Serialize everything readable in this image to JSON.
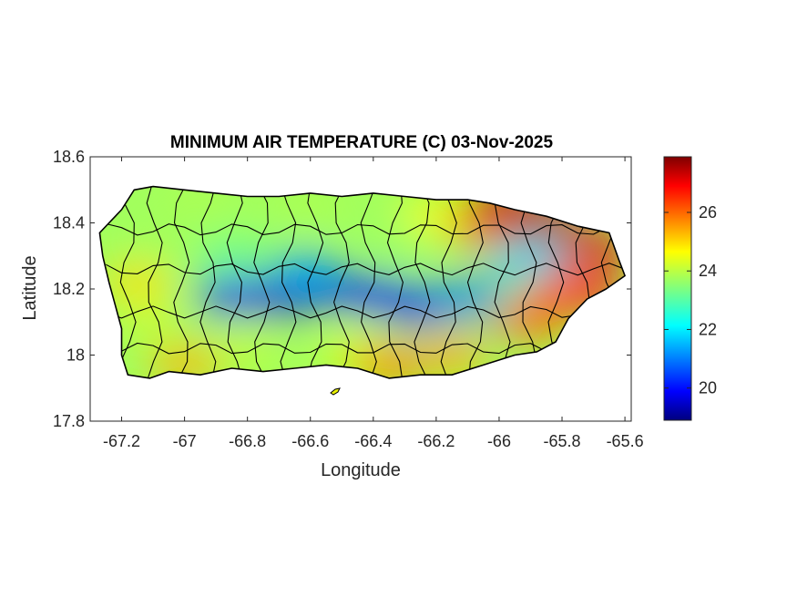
{
  "figure": {
    "title": "MINIMUM AIR TEMPERATURE (C) 03-Nov-2025",
    "xlabel": "Longitude",
    "ylabel": "Latitude"
  },
  "axes": {
    "xlim": [
      -67.3,
      -65.58
    ],
    "ylim": [
      17.8,
      18.6
    ],
    "xticks": [
      -67.2,
      -67,
      -66.8,
      -66.6,
      -66.4,
      -66.2,
      -66,
      -65.8,
      -65.6
    ],
    "xtick_labels": [
      "-67.2",
      "-67",
      "-66.8",
      "-66.6",
      "-66.4",
      "-66.2",
      "-66",
      "-65.8",
      "-65.6"
    ],
    "yticks": [
      17.8,
      18,
      18.2,
      18.4,
      18.6
    ],
    "ytick_labels": [
      "17.8",
      "18",
      "18.2",
      "18.4",
      "18.6"
    ]
  },
  "colorbar": {
    "colormap": "jet",
    "range": [
      18.9,
      27.9
    ],
    "ticks": [
      20,
      22,
      24,
      26
    ],
    "tick_labels": [
      "20",
      "22",
      "24",
      "26"
    ]
  },
  "colors": {
    "border": "#000000",
    "axis": "#262626",
    "background": "#ffffff"
  },
  "map_data": {
    "type": "heatmap",
    "variable": "minimum air temperature",
    "units": "C",
    "island_outline_lonlat": [
      [
        -67.27,
        18.37
      ],
      [
        -67.24,
        18.4
      ],
      [
        -67.2,
        18.44
      ],
      [
        -67.16,
        18.5
      ],
      [
        -67.1,
        18.51
      ],
      [
        -67.0,
        18.5
      ],
      [
        -66.9,
        18.49
      ],
      [
        -66.8,
        18.48
      ],
      [
        -66.7,
        18.48
      ],
      [
        -66.6,
        18.49
      ],
      [
        -66.5,
        18.48
      ],
      [
        -66.4,
        18.49
      ],
      [
        -66.3,
        18.48
      ],
      [
        -66.2,
        18.47
      ],
      [
        -66.1,
        18.47
      ],
      [
        -66.03,
        18.46
      ],
      [
        -65.95,
        18.44
      ],
      [
        -65.85,
        18.42
      ],
      [
        -65.75,
        18.39
      ],
      [
        -65.65,
        18.37
      ],
      [
        -65.62,
        18.29
      ],
      [
        -65.6,
        18.24
      ],
      [
        -65.66,
        18.2
      ],
      [
        -65.72,
        18.17
      ],
      [
        -65.78,
        18.11
      ],
      [
        -65.82,
        18.04
      ],
      [
        -65.88,
        18.01
      ],
      [
        -65.95,
        18.0
      ],
      [
        -66.05,
        17.97
      ],
      [
        -66.15,
        17.94
      ],
      [
        -66.25,
        17.94
      ],
      [
        -66.35,
        17.93
      ],
      [
        -66.45,
        17.96
      ],
      [
        -66.55,
        17.97
      ],
      [
        -66.65,
        17.96
      ],
      [
        -66.75,
        17.95
      ],
      [
        -66.85,
        17.96
      ],
      [
        -66.95,
        17.94
      ],
      [
        -67.05,
        17.95
      ],
      [
        -67.11,
        17.93
      ],
      [
        -67.18,
        17.94
      ],
      [
        -67.2,
        18.0
      ],
      [
        -67.2,
        18.08
      ],
      [
        -67.22,
        18.15
      ],
      [
        -67.24,
        18.22
      ],
      [
        -67.26,
        18.3
      ]
    ],
    "features": [
      {
        "lon": -66.7,
        "lat": 18.17,
        "value": 19.5
      },
      {
        "lon": -66.55,
        "lat": 18.2,
        "value": 19.7
      },
      {
        "lon": -66.85,
        "lat": 18.18,
        "value": 20.0
      },
      {
        "lon": -66.4,
        "lat": 18.18,
        "value": 20.5
      },
      {
        "lon": -66.25,
        "lat": 18.15,
        "value": 20.5
      },
      {
        "lon": -66.62,
        "lat": 18.25,
        "value": 21.5
      },
      {
        "lon": -66.1,
        "lat": 18.17,
        "value": 21.2
      },
      {
        "lon": -65.93,
        "lat": 18.28,
        "value": 21.8
      },
      {
        "lon": -65.82,
        "lat": 18.3,
        "value": 22.0
      },
      {
        "lon": -66.85,
        "lat": 18.3,
        "value": 23.2
      },
      {
        "lon": -67.05,
        "lat": 18.35,
        "value": 23.7
      },
      {
        "lon": -66.3,
        "lat": 18.35,
        "value": 23.6
      },
      {
        "lon": -67.1,
        "lat": 18.1,
        "value": 24.0
      },
      {
        "lon": -66.8,
        "lat": 18.03,
        "value": 24.0
      },
      {
        "lon": -66.45,
        "lat": 18.01,
        "value": 24.3
      },
      {
        "lon": -67.15,
        "lat": 18.22,
        "value": 24.8
      },
      {
        "lon": -66.2,
        "lat": 18.42,
        "value": 24.5
      },
      {
        "lon": -66.15,
        "lat": 18.0,
        "value": 25.3
      },
      {
        "lon": -66.05,
        "lat": 18.38,
        "value": 25.5
      },
      {
        "lon": -66.35,
        "lat": 17.97,
        "value": 25.6
      },
      {
        "lon": -65.9,
        "lat": 18.1,
        "value": 25.8
      },
      {
        "lon": -67.0,
        "lat": 17.97,
        "value": 25.2
      },
      {
        "lon": -66.95,
        "lat": 18.47,
        "value": 23.8
      },
      {
        "lon": -66.6,
        "lat": 18.46,
        "value": 23.8
      },
      {
        "lon": -65.8,
        "lat": 18.2,
        "value": 26.0
      },
      {
        "lon": -65.72,
        "lat": 18.19,
        "value": 26.5
      },
      {
        "lon": -65.7,
        "lat": 18.32,
        "value": 27.0
      },
      {
        "lon": -65.95,
        "lat": 18.43,
        "value": 27.6
      },
      {
        "lon": -65.85,
        "lat": 18.41,
        "value": 27.4
      },
      {
        "lon": -66.0,
        "lat": 18.45,
        "value": 27.2
      }
    ]
  }
}
